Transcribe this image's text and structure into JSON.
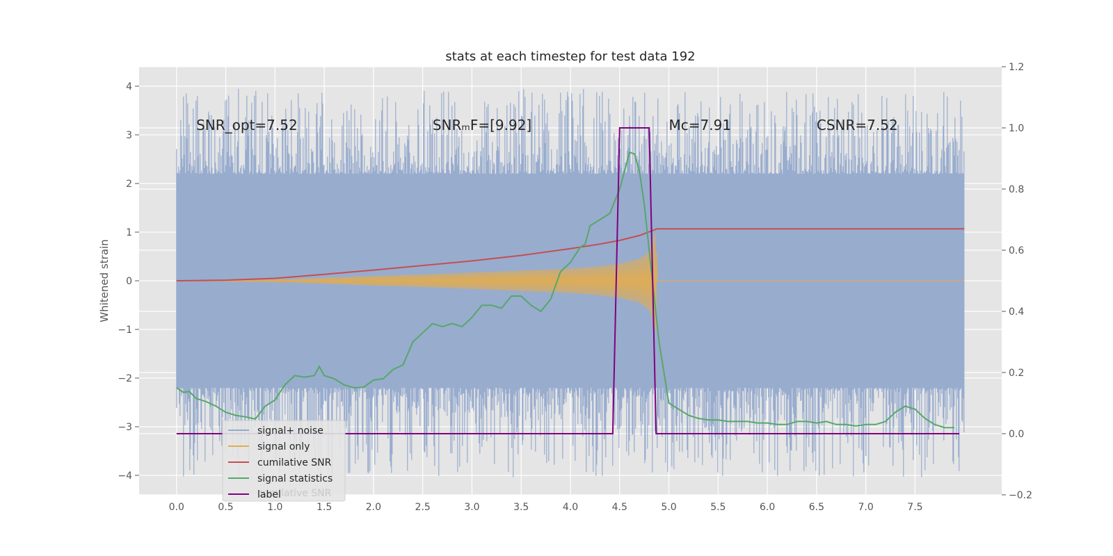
{
  "chart_data": {
    "type": "line",
    "title": "stats at each timestep for test data 192",
    "ylabel_left": "Whitened strain",
    "ylabel_right": "",
    "xlabel": "",
    "xlim": [
      -0.38,
      8.38
    ],
    "ylim_left": [
      -4.4,
      4.4
    ],
    "ylim_right": [
      -0.2,
      1.2
    ],
    "xticks": [
      "0.0",
      "0.5",
      "1.0",
      "1.5",
      "2.0",
      "2.5",
      "3.0",
      "3.5",
      "4.0",
      "4.5",
      "5.0",
      "5.5",
      "6.0",
      "6.5",
      "7.0",
      "7.5"
    ],
    "yticks_left": [
      "4",
      "3",
      "2",
      "1",
      "0",
      "−1",
      "−2",
      "−3",
      "−4"
    ],
    "yticks_right": [
      "1.2",
      "1.0",
      "0.8",
      "0.6",
      "0.4",
      "0.2",
      "0.0",
      "−0.2"
    ],
    "grid": true,
    "legend_location": "lower-left",
    "annotations": [
      {
        "text": "SNR_opt=7.52",
        "x": 0.2,
        "y": 3.1
      },
      {
        "text": "SNRₘF=[9.92]",
        "x": 2.6,
        "y": 3.1
      },
      {
        "text": "Mᴄ=7.91",
        "x": 5.0,
        "y": 3.1
      },
      {
        "text": "CSNR=7.52",
        "x": 6.5,
        "y": 3.1
      }
    ],
    "background_color": "#e5e5e5",
    "series": [
      {
        "name": "signal+ noise",
        "axis": "left",
        "color": "#94a9cc",
        "x_range": [
          0.0,
          8.0
        ],
        "envelope_top": 2.2,
        "envelope_bottom": -2.2,
        "peak_max": 3.95,
        "peak_min": -4.05
      },
      {
        "name": "signal only",
        "axis": "left",
        "color": "#e1ac50",
        "x": [
          0.0,
          1.0,
          1.5,
          2.0,
          2.5,
          3.0,
          3.5,
          4.0,
          4.3,
          4.5,
          4.7,
          4.8,
          4.87,
          4.88,
          8.0
        ],
        "amplitude": [
          0.0,
          0.02,
          0.06,
          0.1,
          0.13,
          0.17,
          0.21,
          0.25,
          0.3,
          0.35,
          0.45,
          0.6,
          1.05,
          0.0,
          0.0
        ]
      },
      {
        "name": "cumilative SNR",
        "axis": "right",
        "color": "#c44e52",
        "x": [
          0.0,
          0.5,
          1.0,
          1.5,
          2.0,
          2.5,
          3.0,
          3.5,
          4.0,
          4.3,
          4.5,
          4.7,
          4.8,
          4.88,
          5.0,
          8.0
        ],
        "values": [
          0.5,
          0.502,
          0.508,
          0.521,
          0.535,
          0.55,
          0.565,
          0.583,
          0.605,
          0.62,
          0.632,
          0.648,
          0.66,
          0.67,
          0.67,
          0.67
        ]
      },
      {
        "name": "signal statistics",
        "axis": "right",
        "color": "#55a868",
        "x": [
          0.0,
          0.07,
          0.13,
          0.2,
          0.3,
          0.4,
          0.5,
          0.6,
          0.7,
          0.8,
          0.9,
          1.0,
          1.1,
          1.2,
          1.3,
          1.4,
          1.45,
          1.5,
          1.6,
          1.7,
          1.8,
          1.9,
          2.0,
          2.1,
          2.2,
          2.3,
          2.4,
          2.5,
          2.6,
          2.7,
          2.8,
          2.9,
          3.0,
          3.1,
          3.2,
          3.3,
          3.4,
          3.5,
          3.6,
          3.7,
          3.75,
          3.8,
          3.9,
          4.0,
          4.1,
          4.15,
          4.2,
          4.3,
          4.4,
          4.5,
          4.55,
          4.6,
          4.65,
          4.7,
          4.75,
          4.8,
          4.85,
          4.9,
          5.0,
          5.1,
          5.2,
          5.3,
          5.4,
          5.5,
          5.6,
          5.7,
          5.8,
          5.9,
          6.0,
          6.1,
          6.2,
          6.3,
          6.4,
          6.5,
          6.6,
          6.7,
          6.8,
          6.9,
          7.0,
          7.1,
          7.2,
          7.3,
          7.4,
          7.5,
          7.6,
          7.7,
          7.8,
          7.9
        ],
        "values": [
          0.15,
          0.135,
          0.138,
          0.115,
          0.105,
          0.09,
          0.07,
          0.06,
          0.055,
          0.048,
          0.09,
          0.11,
          0.16,
          0.19,
          0.185,
          0.19,
          0.22,
          0.19,
          0.18,
          0.16,
          0.15,
          0.152,
          0.175,
          0.18,
          0.21,
          0.225,
          0.3,
          0.33,
          0.36,
          0.35,
          0.36,
          0.35,
          0.38,
          0.42,
          0.42,
          0.41,
          0.45,
          0.45,
          0.42,
          0.4,
          0.42,
          0.44,
          0.53,
          0.56,
          0.61,
          0.62,
          0.68,
          0.7,
          0.72,
          0.8,
          0.86,
          0.92,
          0.915,
          0.86,
          0.75,
          0.6,
          0.45,
          0.3,
          0.1,
          0.08,
          0.06,
          0.05,
          0.045,
          0.045,
          0.04,
          0.04,
          0.04,
          0.035,
          0.035,
          0.03,
          0.03,
          0.04,
          0.04,
          0.035,
          0.04,
          0.03,
          0.03,
          0.025,
          0.03,
          0.03,
          0.04,
          0.07,
          0.09,
          0.08,
          0.05,
          0.03,
          0.02,
          0.02
        ]
      },
      {
        "name": "label",
        "axis": "right",
        "color": "#800080",
        "x": [
          0.0,
          4.43,
          4.5,
          4.8,
          4.87,
          7.95
        ],
        "values": [
          0.0,
          0.0,
          1.0,
          1.0,
          0.0,
          0.0
        ]
      }
    ],
    "legend_entries": [
      "signal+ noise",
      "signal only",
      "cumilative SNR",
      "signal statistics",
      "label"
    ],
    "hidden_legend_text": "cumilative SNR"
  }
}
